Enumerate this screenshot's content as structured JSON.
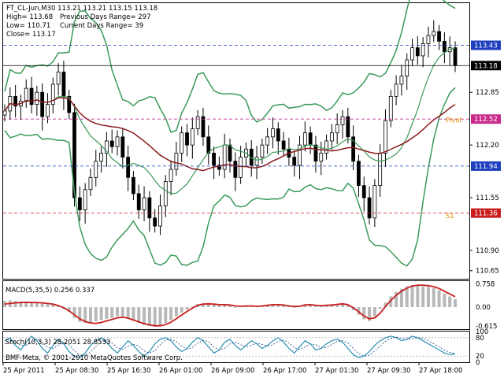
{
  "chart_data": [
    {
      "type": "candlestick",
      "symbol": "FT_CL-Jun,M30",
      "header": {
        "ohlc_line": "FT_CL-Jun,M30  113.21 113.21 113.15 113.18",
        "high_line": "High= 113.68",
        "low_line": "Low= 110.71",
        "close_line": "Close= 113.17",
        "prev_range_line": "Previous Days Range= 297",
        "curr_range_line": "Current Days Range= 39"
      },
      "ylim": [
        110.55,
        113.95
      ],
      "y_ticks": [
        "113.43",
        "113.18",
        "112.85",
        "112.52",
        "112.20",
        "111.94",
        "111.55",
        "111.36",
        "110.90",
        "110.65"
      ],
      "price_tags": [
        {
          "label": "113.43",
          "value": 113.43,
          "color": "#1f3fbf"
        },
        {
          "label": "113.18",
          "value": 113.18,
          "color": "#000000"
        },
        {
          "label": "112.52",
          "value": 112.52,
          "color": "#c82b8c"
        },
        {
          "label": "111.94",
          "value": 111.94,
          "color": "#1f3fbf"
        },
        {
          "label": "111.36",
          "value": 111.36,
          "color": "#c81e1e"
        }
      ],
      "annotations": [
        {
          "text": "Pivot",
          "value": 112.48
        },
        {
          "text": "S1",
          "value": 111.3
        }
      ],
      "closes": [
        112.62,
        112.8,
        112.68,
        112.74,
        112.9,
        112.7,
        112.85,
        112.55,
        112.7,
        112.95,
        113.1,
        112.8,
        112.6,
        111.55,
        111.4,
        111.65,
        111.8,
        112.0,
        112.1,
        112.25,
        112.18,
        112.3,
        112.05,
        111.8,
        111.6,
        111.4,
        111.55,
        111.3,
        111.2,
        111.45,
        111.75,
        111.9,
        112.1,
        112.35,
        112.2,
        112.4,
        112.55,
        112.3,
        112.1,
        111.95,
        111.9,
        112.2,
        112.0,
        111.8,
        112.05,
        112.15,
        111.95,
        112.05,
        112.2,
        112.3,
        112.4,
        112.25,
        112.15,
        112.05,
        111.95,
        112.2,
        112.35,
        112.2,
        112.0,
        112.1,
        112.25,
        112.35,
        112.45,
        112.55,
        112.3,
        112.0,
        111.7,
        111.55,
        111.3,
        111.7,
        112.1,
        112.5,
        112.8,
        112.95,
        113.05,
        113.25,
        113.4,
        113.3,
        113.45,
        113.55,
        113.6,
        113.48,
        113.35,
        113.4,
        113.18
      ],
      "macd": {
        "label": "MACD(5,35,5) 0.256 0.337",
        "ylim": [
          -0.72,
          0.85
        ],
        "ticks": [
          "0.758",
          "0.00",
          "-0.615"
        ],
        "histogram": [
          0.2,
          0.22,
          0.2,
          0.18,
          0.16,
          0.14,
          0.15,
          0.12,
          0.1,
          0.08,
          0.05,
          -0.05,
          -0.15,
          -0.35,
          -0.48,
          -0.52,
          -0.5,
          -0.46,
          -0.42,
          -0.38,
          -0.35,
          -0.3,
          -0.32,
          -0.38,
          -0.45,
          -0.52,
          -0.58,
          -0.62,
          -0.64,
          -0.6,
          -0.52,
          -0.42,
          -0.3,
          -0.18,
          -0.08,
          0.02,
          0.1,
          0.12,
          0.1,
          0.08,
          0.06,
          0.08,
          0.05,
          0.0,
          0.02,
          0.05,
          0.03,
          0.02,
          0.05,
          0.08,
          0.1,
          0.08,
          0.05,
          0.02,
          0.0,
          0.05,
          0.1,
          0.08,
          0.03,
          0.04,
          0.06,
          0.08,
          0.1,
          0.12,
          0.05,
          -0.1,
          -0.25,
          -0.4,
          -0.45,
          -0.3,
          -0.05,
          0.15,
          0.35,
          0.5,
          0.6,
          0.68,
          0.72,
          0.7,
          0.68,
          0.66,
          0.62,
          0.55,
          0.45,
          0.35,
          0.26
        ],
        "signal": [
          0.1,
          0.12,
          0.14,
          0.15,
          0.16,
          0.15,
          0.15,
          0.14,
          0.12,
          0.1,
          0.05,
          -0.02,
          -0.12,
          -0.25,
          -0.38,
          -0.47,
          -0.52,
          -0.53,
          -0.5,
          -0.45,
          -0.4,
          -0.35,
          -0.33,
          -0.36,
          -0.42,
          -0.48,
          -0.54,
          -0.58,
          -0.61,
          -0.61,
          -0.57,
          -0.49,
          -0.38,
          -0.26,
          -0.14,
          -0.03,
          0.06,
          0.1,
          0.11,
          0.1,
          0.08,
          0.08,
          0.07,
          0.04,
          0.03,
          0.04,
          0.04,
          0.03,
          0.04,
          0.06,
          0.08,
          0.08,
          0.07,
          0.04,
          0.02,
          0.03,
          0.07,
          0.08,
          0.06,
          0.05,
          0.06,
          0.07,
          0.09,
          0.11,
          0.08,
          -0.02,
          -0.15,
          -0.29,
          -0.38,
          -0.35,
          -0.2,
          0.02,
          0.22,
          0.39,
          0.52,
          0.62,
          0.69,
          0.72,
          0.72,
          0.7,
          0.67,
          0.61,
          0.52,
          0.43,
          0.34
        ]
      },
      "stoch": {
        "label": "Stoch(10,3,3) 28.2051 28.8533",
        "ylim": [
          0,
          100
        ],
        "ticks": [
          "100",
          "80",
          "20",
          "0"
        ],
        "main": [
          70,
          80,
          55,
          40,
          65,
          85,
          70,
          45,
          30,
          55,
          75,
          60,
          35,
          20,
          15,
          30,
          55,
          70,
          80,
          65,
          45,
          30,
          50,
          70,
          55,
          35,
          20,
          35,
          60,
          75,
          80,
          70,
          50,
          35,
          45,
          65,
          80,
          70,
          50,
          30,
          40,
          65,
          75,
          55,
          40,
          55,
          70,
          60,
          45,
          55,
          70,
          80,
          65,
          45,
          30,
          50,
          70,
          60,
          40,
          45,
          60,
          70,
          75,
          65,
          45,
          25,
          15,
          20,
          35,
          55,
          70,
          80,
          85,
          80,
          70,
          75,
          85,
          80,
          70,
          60,
          50,
          40,
          30,
          25,
          28
        ],
        "signal": [
          60,
          70,
          65,
          55,
          55,
          65,
          75,
          65,
          48,
          45,
          55,
          65,
          57,
          38,
          23,
          22,
          33,
          52,
          68,
          72,
          63,
          47,
          42,
          52,
          58,
          53,
          37,
          30,
          38,
          57,
          72,
          75,
          67,
          52,
          43,
          48,
          63,
          72,
          67,
          50,
          40,
          45,
          60,
          65,
          57,
          50,
          55,
          62,
          58,
          53,
          57,
          68,
          72,
          63,
          47,
          42,
          50,
          60,
          57,
          48,
          48,
          58,
          68,
          70,
          62,
          45,
          28,
          20,
          23,
          37,
          53,
          68,
          78,
          82,
          78,
          75,
          77,
          80,
          78,
          70,
          60,
          50,
          40,
          32,
          29
        ]
      },
      "x_tick_labels": [
        "25 Apr 2011",
        "25 Apr 08:30",
        "25 Apr 16:30",
        "26 Apr 01:00",
        "26 Apr 09:00",
        "26 Apr 17:00",
        "27 Apr 01:30",
        "27 Apr 09:30",
        "27 Apr 18:00"
      ],
      "copyright": "BMF-Meta, © 2001-2010 MetaQuotes Software Corp."
    }
  ]
}
